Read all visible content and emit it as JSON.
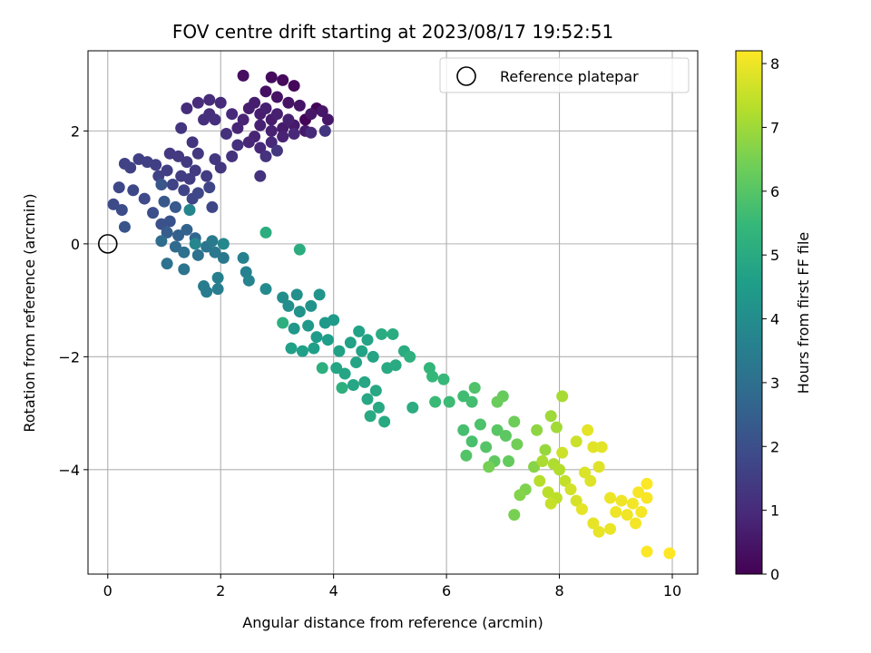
{
  "chart_data": {
    "type": "scatter",
    "title": "FOV centre drift starting at 2023/08/17 19:52:51",
    "xlabel": "Angular distance from reference (arcmin)",
    "ylabel": "Rotation from reference (arcmin)",
    "xlim": [
      -0.35,
      10.45
    ],
    "ylim": [
      -5.85,
      3.42
    ],
    "xticks": [
      0,
      2,
      4,
      6,
      8,
      10
    ],
    "yticks": [
      2,
      0,
      -2,
      -4
    ],
    "grid": true,
    "legend": {
      "placement": "top-right",
      "entries": [
        {
          "label": "Reference platepar",
          "marker": "open-circle"
        }
      ]
    },
    "reference_point": {
      "x": 0,
      "y": 0
    },
    "colorbar": {
      "label": "Hours from first FF file",
      "range": [
        0,
        8.2
      ],
      "ticks": [
        0,
        1,
        2,
        3,
        4,
        5,
        6,
        7,
        8
      ],
      "colormap": "viridis"
    },
    "colors": {
      "viridis_stops": [
        "#440154",
        "#482878",
        "#3e4989",
        "#31688e",
        "#26828e",
        "#1f9e89",
        "#35b779",
        "#6ece58",
        "#b5de2b",
        "#fde725"
      ]
    },
    "points": [
      {
        "x": 3.5,
        "y": 2.2,
        "t": 0.05
      },
      {
        "x": 3.7,
        "y": 2.4,
        "t": 0.1
      },
      {
        "x": 3.3,
        "y": 2.8,
        "t": 0.15
      },
      {
        "x": 3.1,
        "y": 2.9,
        "t": 0.2
      },
      {
        "x": 2.9,
        "y": 2.95,
        "t": 0.25
      },
      {
        "x": 2.4,
        "y": 2.98,
        "t": 0.3
      },
      {
        "x": 2.8,
        "y": 2.7,
        "t": 0.35
      },
      {
        "x": 3.0,
        "y": 2.6,
        "t": 0.4
      },
      {
        "x": 3.2,
        "y": 2.5,
        "t": 0.42
      },
      {
        "x": 3.4,
        "y": 2.45,
        "t": 0.45
      },
      {
        "x": 3.6,
        "y": 2.3,
        "t": 0.48
      },
      {
        "x": 3.8,
        "y": 2.35,
        "t": 0.5
      },
      {
        "x": 3.9,
        "y": 2.2,
        "t": 0.52
      },
      {
        "x": 3.5,
        "y": 2.0,
        "t": 0.55
      },
      {
        "x": 3.3,
        "y": 2.1,
        "t": 0.57
      },
      {
        "x": 3.1,
        "y": 2.05,
        "t": 0.6
      },
      {
        "x": 2.9,
        "y": 2.2,
        "t": 0.62
      },
      {
        "x": 2.7,
        "y": 2.3,
        "t": 0.64
      },
      {
        "x": 2.6,
        "y": 2.5,
        "t": 0.66
      },
      {
        "x": 2.5,
        "y": 2.4,
        "t": 0.68
      },
      {
        "x": 2.8,
        "y": 2.4,
        "t": 0.7
      },
      {
        "x": 3.0,
        "y": 2.3,
        "t": 0.72
      },
      {
        "x": 3.2,
        "y": 2.2,
        "t": 0.74
      },
      {
        "x": 2.7,
        "y": 2.1,
        "t": 0.76
      },
      {
        "x": 2.9,
        "y": 2.0,
        "t": 0.78
      },
      {
        "x": 3.1,
        "y": 1.9,
        "t": 0.8
      },
      {
        "x": 2.6,
        "y": 1.9,
        "t": 0.82
      },
      {
        "x": 2.4,
        "y": 2.2,
        "t": 0.84
      },
      {
        "x": 2.3,
        "y": 2.05,
        "t": 0.86
      },
      {
        "x": 2.5,
        "y": 1.8,
        "t": 0.88
      },
      {
        "x": 2.7,
        "y": 1.7,
        "t": 0.9
      },
      {
        "x": 2.9,
        "y": 1.8,
        "t": 0.92
      },
      {
        "x": 3.3,
        "y": 1.95,
        "t": 0.94
      },
      {
        "x": 3.6,
        "y": 1.97,
        "t": 0.96
      },
      {
        "x": 2.2,
        "y": 2.3,
        "t": 0.98
      },
      {
        "x": 2.0,
        "y": 2.5,
        "t": 1.0
      },
      {
        "x": 1.8,
        "y": 2.55,
        "t": 1.02
      },
      {
        "x": 1.6,
        "y": 2.5,
        "t": 1.04
      },
      {
        "x": 1.4,
        "y": 2.4,
        "t": 1.06
      },
      {
        "x": 1.8,
        "y": 2.3,
        "t": 1.08
      },
      {
        "x": 1.9,
        "y": 2.2,
        "t": 1.1
      },
      {
        "x": 1.7,
        "y": 2.2,
        "t": 1.12
      },
      {
        "x": 2.1,
        "y": 1.95,
        "t": 1.14
      },
      {
        "x": 2.3,
        "y": 1.75,
        "t": 1.16
      },
      {
        "x": 2.2,
        "y": 1.55,
        "t": 1.18
      },
      {
        "x": 2.7,
        "y": 1.2,
        "t": 1.2
      },
      {
        "x": 2.8,
        "y": 1.55,
        "t": 1.22
      },
      {
        "x": 1.5,
        "y": 1.8,
        "t": 1.24
      },
      {
        "x": 1.3,
        "y": 2.05,
        "t": 1.26
      },
      {
        "x": 3.85,
        "y": 2.0,
        "t": 1.28
      },
      {
        "x": 3.0,
        "y": 1.65,
        "t": 1.3
      },
      {
        "x": 2.0,
        "y": 1.35,
        "t": 1.32
      },
      {
        "x": 1.9,
        "y": 1.5,
        "t": 1.34
      },
      {
        "x": 1.6,
        "y": 1.6,
        "t": 1.36
      },
      {
        "x": 1.1,
        "y": 1.6,
        "t": 1.38
      },
      {
        "x": 1.25,
        "y": 1.55,
        "t": 1.4
      },
      {
        "x": 1.4,
        "y": 1.45,
        "t": 1.42
      },
      {
        "x": 1.55,
        "y": 1.3,
        "t": 1.44
      },
      {
        "x": 1.75,
        "y": 1.2,
        "t": 1.46
      },
      {
        "x": 1.45,
        "y": 1.15,
        "t": 1.48
      },
      {
        "x": 1.3,
        "y": 1.2,
        "t": 1.5
      },
      {
        "x": 1.05,
        "y": 1.3,
        "t": 1.52
      },
      {
        "x": 0.85,
        "y": 1.4,
        "t": 1.54
      },
      {
        "x": 0.7,
        "y": 1.45,
        "t": 1.56
      },
      {
        "x": 0.55,
        "y": 1.5,
        "t": 1.58
      },
      {
        "x": 0.4,
        "y": 1.35,
        "t": 1.6
      },
      {
        "x": 0.3,
        "y": 1.42,
        "t": 1.62
      },
      {
        "x": 0.9,
        "y": 1.2,
        "t": 1.64
      },
      {
        "x": 1.15,
        "y": 1.05,
        "t": 1.66
      },
      {
        "x": 1.35,
        "y": 0.95,
        "t": 1.68
      },
      {
        "x": 1.5,
        "y": 0.8,
        "t": 1.7
      },
      {
        "x": 1.8,
        "y": 1.0,
        "t": 1.72
      },
      {
        "x": 1.85,
        "y": 0.65,
        "t": 1.74
      },
      {
        "x": 1.6,
        "y": 0.9,
        "t": 1.76
      },
      {
        "x": 0.2,
        "y": 1.0,
        "t": 1.78
      },
      {
        "x": 0.45,
        "y": 0.95,
        "t": 1.8
      },
      {
        "x": 0.65,
        "y": 0.8,
        "t": 1.85
      },
      {
        "x": 0.1,
        "y": 0.7,
        "t": 1.9
      },
      {
        "x": 0.25,
        "y": 0.6,
        "t": 1.95
      },
      {
        "x": 0.8,
        "y": 0.55,
        "t": 2.0
      },
      {
        "x": 0.95,
        "y": 0.35,
        "t": 2.05
      },
      {
        "x": 1.1,
        "y": 0.4,
        "t": 2.1
      },
      {
        "x": 0.3,
        "y": 0.3,
        "t": 2.15
      },
      {
        "x": 0.95,
        "y": 1.05,
        "t": 2.2
      },
      {
        "x": 1.0,
        "y": 0.75,
        "t": 2.25
      },
      {
        "x": 1.2,
        "y": 0.65,
        "t": 2.3
      },
      {
        "x": 1.05,
        "y": 0.2,
        "t": 2.4
      },
      {
        "x": 1.25,
        "y": 0.15,
        "t": 2.5
      },
      {
        "x": 1.4,
        "y": 0.25,
        "t": 2.6
      },
      {
        "x": 1.55,
        "y": 0.1,
        "t": 2.7
      },
      {
        "x": 1.2,
        "y": -0.05,
        "t": 2.8
      },
      {
        "x": 0.95,
        "y": 0.05,
        "t": 2.9
      },
      {
        "x": 1.35,
        "y": -0.15,
        "t": 3.0
      },
      {
        "x": 1.6,
        "y": -0.2,
        "t": 3.05
      },
      {
        "x": 1.05,
        "y": -0.35,
        "t": 3.1
      },
      {
        "x": 1.35,
        "y": -0.45,
        "t": 3.15
      },
      {
        "x": 1.75,
        "y": -0.05,
        "t": 3.2
      },
      {
        "x": 1.9,
        "y": -0.15,
        "t": 3.25
      },
      {
        "x": 2.05,
        "y": -0.25,
        "t": 3.3
      },
      {
        "x": 1.85,
        "y": 0.05,
        "t": 3.35
      },
      {
        "x": 1.7,
        "y": -0.75,
        "t": 3.4
      },
      {
        "x": 1.75,
        "y": -0.85,
        "t": 3.45
      },
      {
        "x": 1.95,
        "y": -0.8,
        "t": 3.5
      },
      {
        "x": 1.95,
        "y": -0.6,
        "t": 3.55
      },
      {
        "x": 2.4,
        "y": -0.25,
        "t": 3.6
      },
      {
        "x": 2.45,
        "y": -0.5,
        "t": 3.65
      },
      {
        "x": 2.5,
        "y": -0.65,
        "t": 3.7
      },
      {
        "x": 1.45,
        "y": 0.6,
        "t": 3.75
      },
      {
        "x": 1.55,
        "y": 0.0,
        "t": 3.8
      },
      {
        "x": 2.05,
        "y": 0.0,
        "t": 3.85
      },
      {
        "x": 2.8,
        "y": -0.8,
        "t": 3.9
      },
      {
        "x": 3.1,
        "y": -0.95,
        "t": 4.0
      },
      {
        "x": 3.2,
        "y": -1.1,
        "t": 4.05
      },
      {
        "x": 3.35,
        "y": -0.9,
        "t": 4.1
      },
      {
        "x": 3.4,
        "y": -1.2,
        "t": 4.15
      },
      {
        "x": 3.6,
        "y": -1.1,
        "t": 4.2
      },
      {
        "x": 3.75,
        "y": -0.9,
        "t": 4.25
      },
      {
        "x": 3.3,
        "y": -1.5,
        "t": 4.3
      },
      {
        "x": 3.55,
        "y": -1.45,
        "t": 4.35
      },
      {
        "x": 3.85,
        "y": -1.4,
        "t": 4.4
      },
      {
        "x": 4.0,
        "y": -1.35,
        "t": 4.45
      },
      {
        "x": 3.7,
        "y": -1.65,
        "t": 4.5
      },
      {
        "x": 3.9,
        "y": -1.7,
        "t": 4.55
      },
      {
        "x": 3.65,
        "y": -1.85,
        "t": 4.6
      },
      {
        "x": 3.45,
        "y": -1.9,
        "t": 4.62
      },
      {
        "x": 3.25,
        "y": -1.85,
        "t": 4.64
      },
      {
        "x": 4.1,
        "y": -1.9,
        "t": 4.66
      },
      {
        "x": 4.3,
        "y": -1.75,
        "t": 4.68
      },
      {
        "x": 4.45,
        "y": -1.55,
        "t": 4.7
      },
      {
        "x": 4.6,
        "y": -1.7,
        "t": 4.72
      },
      {
        "x": 4.5,
        "y": -1.9,
        "t": 4.74
      },
      {
        "x": 4.7,
        "y": -2.0,
        "t": 4.76
      },
      {
        "x": 4.4,
        "y": -2.1,
        "t": 4.78
      },
      {
        "x": 4.2,
        "y": -2.3,
        "t": 4.8
      },
      {
        "x": 4.05,
        "y": -2.2,
        "t": 4.82
      },
      {
        "x": 4.35,
        "y": -2.5,
        "t": 4.84
      },
      {
        "x": 4.55,
        "y": -2.45,
        "t": 4.86
      },
      {
        "x": 4.75,
        "y": -2.6,
        "t": 4.88
      },
      {
        "x": 4.6,
        "y": -2.75,
        "t": 4.9
      },
      {
        "x": 4.8,
        "y": -2.9,
        "t": 4.92
      },
      {
        "x": 4.9,
        "y": -3.15,
        "t": 4.94
      },
      {
        "x": 4.65,
        "y": -3.05,
        "t": 4.96
      },
      {
        "x": 4.95,
        "y": -2.2,
        "t": 4.98
      },
      {
        "x": 5.1,
        "y": -2.15,
        "t": 5.0
      },
      {
        "x": 4.85,
        "y": -1.6,
        "t": 5.02
      },
      {
        "x": 5.05,
        "y": -1.6,
        "t": 5.04
      },
      {
        "x": 5.25,
        "y": -1.9,
        "t": 5.06
      },
      {
        "x": 5.4,
        "y": -2.9,
        "t": 5.08
      },
      {
        "x": 3.4,
        "y": -0.1,
        "t": 5.1
      },
      {
        "x": 2.8,
        "y": 0.2,
        "t": 5.12
      },
      {
        "x": 3.1,
        "y": -1.4,
        "t": 5.14
      },
      {
        "x": 3.8,
        "y": -2.2,
        "t": 5.16
      },
      {
        "x": 4.15,
        "y": -2.55,
        "t": 5.18
      },
      {
        "x": 5.35,
        "y": -2.0,
        "t": 5.2
      },
      {
        "x": 5.7,
        "y": -2.2,
        "t": 5.4
      },
      {
        "x": 5.75,
        "y": -2.35,
        "t": 5.45
      },
      {
        "x": 5.95,
        "y": -2.4,
        "t": 5.5
      },
      {
        "x": 5.8,
        "y": -2.8,
        "t": 5.55
      },
      {
        "x": 6.05,
        "y": -2.8,
        "t": 5.6
      },
      {
        "x": 6.3,
        "y": -2.7,
        "t": 5.65
      },
      {
        "x": 6.45,
        "y": -2.8,
        "t": 5.7
      },
      {
        "x": 6.3,
        "y": -3.3,
        "t": 5.75
      },
      {
        "x": 6.45,
        "y": -3.5,
        "t": 5.8
      },
      {
        "x": 6.6,
        "y": -3.2,
        "t": 5.85
      },
      {
        "x": 6.5,
        "y": -2.55,
        "t": 5.9
      },
      {
        "x": 6.35,
        "y": -3.75,
        "t": 5.95
      },
      {
        "x": 6.7,
        "y": -3.6,
        "t": 6.0
      },
      {
        "x": 6.9,
        "y": -3.3,
        "t": 6.05
      },
      {
        "x": 7.05,
        "y": -3.4,
        "t": 6.1
      },
      {
        "x": 6.85,
        "y": -3.85,
        "t": 6.15
      },
      {
        "x": 7.1,
        "y": -3.85,
        "t": 6.2
      },
      {
        "x": 7.0,
        "y": -2.7,
        "t": 6.25
      },
      {
        "x": 6.9,
        "y": -2.8,
        "t": 6.3
      },
      {
        "x": 7.2,
        "y": -3.15,
        "t": 6.35
      },
      {
        "x": 7.25,
        "y": -3.55,
        "t": 6.4
      },
      {
        "x": 6.75,
        "y": -3.95,
        "t": 6.45
      },
      {
        "x": 7.2,
        "y": -4.8,
        "t": 6.5
      },
      {
        "x": 7.4,
        "y": -4.35,
        "t": 6.6
      },
      {
        "x": 7.3,
        "y": -4.45,
        "t": 6.65
      },
      {
        "x": 7.55,
        "y": -3.95,
        "t": 6.7
      },
      {
        "x": 7.6,
        "y": -3.3,
        "t": 6.8
      },
      {
        "x": 7.75,
        "y": -3.65,
        "t": 6.9
      },
      {
        "x": 7.85,
        "y": -3.05,
        "t": 7.0
      },
      {
        "x": 7.95,
        "y": -3.25,
        "t": 7.05
      },
      {
        "x": 8.05,
        "y": -2.7,
        "t": 7.1
      },
      {
        "x": 7.7,
        "y": -3.85,
        "t": 7.15
      },
      {
        "x": 7.9,
        "y": -3.9,
        "t": 7.2
      },
      {
        "x": 8.0,
        "y": -4.0,
        "t": 7.25
      },
      {
        "x": 7.65,
        "y": -4.2,
        "t": 7.3
      },
      {
        "x": 7.8,
        "y": -4.4,
        "t": 7.35
      },
      {
        "x": 7.95,
        "y": -4.5,
        "t": 7.4
      },
      {
        "x": 8.1,
        "y": -4.2,
        "t": 7.45
      },
      {
        "x": 7.85,
        "y": -4.6,
        "t": 7.5
      },
      {
        "x": 8.3,
        "y": -3.5,
        "t": 7.55
      },
      {
        "x": 8.05,
        "y": -3.7,
        "t": 7.6
      },
      {
        "x": 8.2,
        "y": -4.35,
        "t": 7.65
      },
      {
        "x": 8.3,
        "y": -4.55,
        "t": 7.7
      },
      {
        "x": 8.45,
        "y": -4.05,
        "t": 7.75
      },
      {
        "x": 8.55,
        "y": -4.2,
        "t": 7.8
      },
      {
        "x": 8.7,
        "y": -3.95,
        "t": 7.82
      },
      {
        "x": 8.6,
        "y": -3.6,
        "t": 7.84
      },
      {
        "x": 8.75,
        "y": -3.6,
        "t": 7.86
      },
      {
        "x": 8.5,
        "y": -3.3,
        "t": 7.88
      },
      {
        "x": 8.4,
        "y": -4.7,
        "t": 7.9
      },
      {
        "x": 8.6,
        "y": -4.95,
        "t": 7.92
      },
      {
        "x": 8.7,
        "y": -5.1,
        "t": 7.94
      },
      {
        "x": 8.9,
        "y": -5.05,
        "t": 7.96
      },
      {
        "x": 8.9,
        "y": -4.5,
        "t": 7.98
      },
      {
        "x": 9.0,
        "y": -4.75,
        "t": 8.0
      },
      {
        "x": 9.1,
        "y": -4.55,
        "t": 8.02
      },
      {
        "x": 9.2,
        "y": -4.8,
        "t": 8.04
      },
      {
        "x": 9.3,
        "y": -4.6,
        "t": 8.06
      },
      {
        "x": 9.35,
        "y": -4.95,
        "t": 8.08
      },
      {
        "x": 9.45,
        "y": -4.75,
        "t": 8.1
      },
      {
        "x": 9.4,
        "y": -4.4,
        "t": 8.12
      },
      {
        "x": 9.55,
        "y": -4.5,
        "t": 8.14
      },
      {
        "x": 9.55,
        "y": -4.25,
        "t": 8.16
      },
      {
        "x": 9.55,
        "y": -5.45,
        "t": 8.18
      },
      {
        "x": 9.95,
        "y": -5.48,
        "t": 8.2
      }
    ]
  }
}
